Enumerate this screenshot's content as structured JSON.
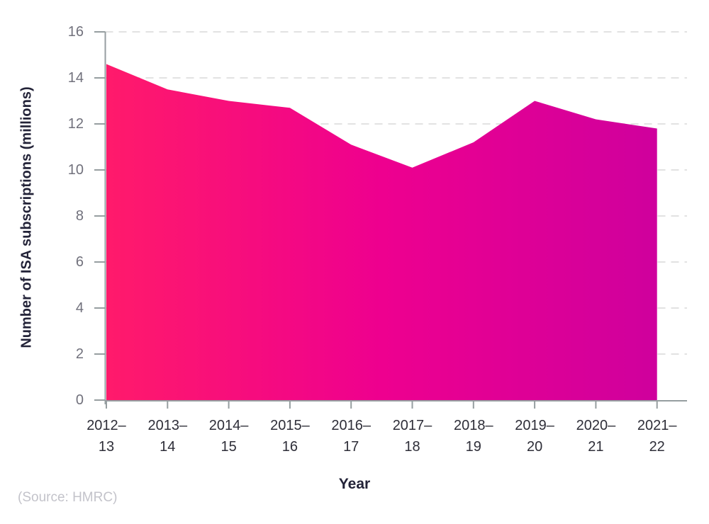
{
  "chart_data": {
    "type": "area",
    "title": "",
    "xlabel": "Year",
    "ylabel": "Number of ISA subscriptions (millions)",
    "source": "(Source: HMRC)",
    "categories": [
      "2012–13",
      "2013–14",
      "2014–15",
      "2015–16",
      "2016–17",
      "2017–18",
      "2018–19",
      "2019–20",
      "2020–21",
      "2021–22"
    ],
    "values": [
      14.6,
      13.5,
      13.0,
      12.7,
      11.1,
      10.1,
      11.2,
      13.0,
      12.2,
      11.8
    ],
    "ylim": [
      0,
      16
    ],
    "ytick_step": 2,
    "grid": "dashed-horizontal",
    "legend": "none",
    "colors": {
      "gradient_start": "#ff1a6b",
      "gradient_mid": "#ee008f",
      "gradient_end": "#cf009d",
      "axis": "#969ea0",
      "grid": "#d8d8d8",
      "y_tick_label": "#71717c",
      "x_tick_label": "#2e2e38",
      "axis_title": "#232338",
      "source_text": "#c3c3ca",
      "background": "#ffffff"
    }
  }
}
